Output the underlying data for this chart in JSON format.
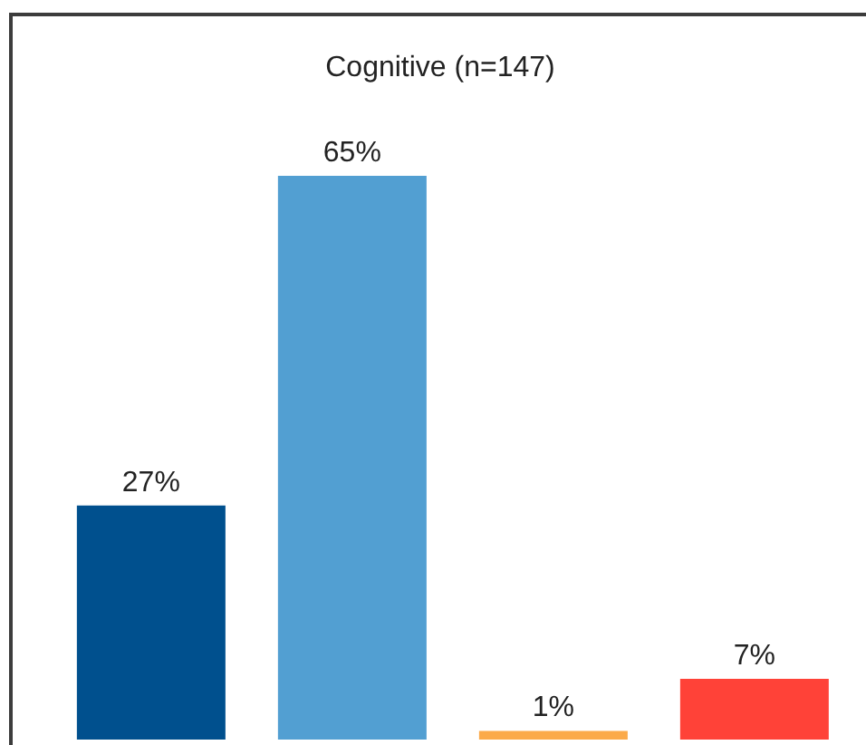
{
  "chart_data": {
    "type": "bar",
    "title": "Cognitive (n=147)",
    "categories": [
      null,
      null,
      null,
      null
    ],
    "values": [
      27,
      65,
      1,
      7
    ],
    "value_labels": [
      "27%",
      "65%",
      "1%",
      "7%"
    ],
    "colors": [
      "#00508e",
      "#529fd2",
      "#fbaa4a",
      "#ff4238"
    ]
  }
}
